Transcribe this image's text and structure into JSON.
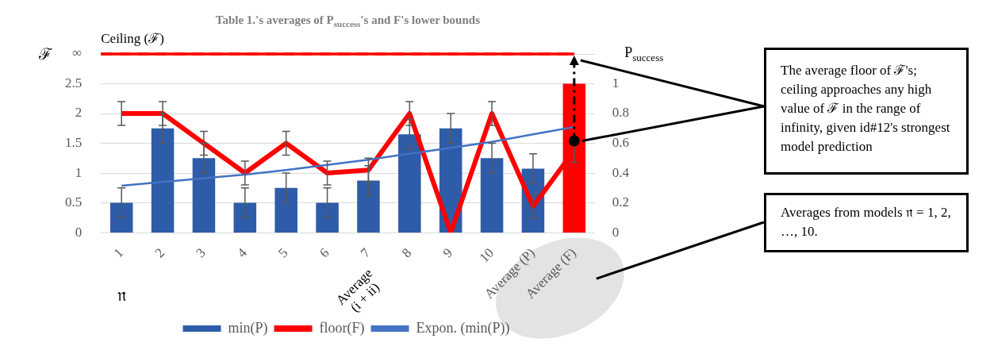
{
  "chart_data": {
    "type": "bar",
    "title": "Table 1.'s averages of P$_{success}$'s and F's lower bounds",
    "xlabel": "𝔫",
    "ylabel": "ℱ",
    "y2label": "P$_{success}$",
    "categories": [
      "1",
      "2",
      "3",
      "4",
      "5",
      "6",
      "7",
      "8",
      "9",
      "10",
      "Average (P)",
      "Average (F)"
    ],
    "series": [
      {
        "name": "min(P)",
        "axis": "y2",
        "color": "#2e5ca8",
        "colors": [
          "#2e5ca8",
          "#2e5ca8",
          "#2e5ca8",
          "#2e5ca8",
          "#2e5ca8",
          "#2e5ca8",
          "#2e5ca8",
          "#2e5ca8",
          "#2e5ca8",
          "#2e5ca8",
          "#2e5ca8",
          "#ff0000"
        ],
        "values": [
          0.2,
          0.7,
          0.5,
          0.2,
          0.3,
          0.2,
          0.35,
          0.66,
          0.7,
          0.5,
          0.43,
          1.0
        ],
        "errors": [
          0.1,
          0.1,
          0.1,
          0.1,
          0.1,
          0.1,
          0.1,
          0.1,
          0.1,
          0.1,
          0.1,
          null
        ]
      },
      {
        "name": "floor(F)",
        "type": "line",
        "color": "#ff0000",
        "values": [
          2,
          2,
          1.5,
          1,
          1.5,
          1,
          1.05,
          2,
          0,
          2,
          0.44,
          1.38
        ],
        "errors": [
          0.2,
          0.2,
          0.2,
          0.2,
          0.2,
          0.2,
          0.2,
          0.2,
          null,
          0.2,
          0.2,
          0.2
        ]
      },
      {
        "name": "Expon. (min(P))",
        "type": "line",
        "axis": "y2",
        "color": "#4472c4",
        "values": [
          0.315,
          0.34,
          0.365,
          0.39,
          0.42,
          0.455,
          0.49,
          0.53,
          0.57,
          0.61,
          0.66,
          0.71
        ]
      }
    ],
    "ylim": [
      0,
      3
    ],
    "yticks": [
      0,
      0.5,
      1,
      1.5,
      2,
      2.5,
      {
        "value": 3,
        "label": "∞"
      }
    ],
    "y2lim": [
      0,
      1.2
    ],
    "y2ticks": [
      0,
      0.2,
      0.4,
      0.6,
      0.8,
      1
    ],
    "ref_lines": [
      {
        "axis": "y",
        "value": 3,
        "label": "Ceiling (ℱ)",
        "color": "#ff0000",
        "line_style": "dashed"
      }
    ],
    "annotations": [
      "Average (i + ii)",
      "The average floor of ℱ's; ceiling approaches any high value of ℱ in the range of infinity, given id#12's strongest model prediction",
      "Averages from models 𝔫 = 1, 2, …, 10."
    ],
    "grid": "y",
    "legend": "bottom",
    "marker": "none"
  }
}
